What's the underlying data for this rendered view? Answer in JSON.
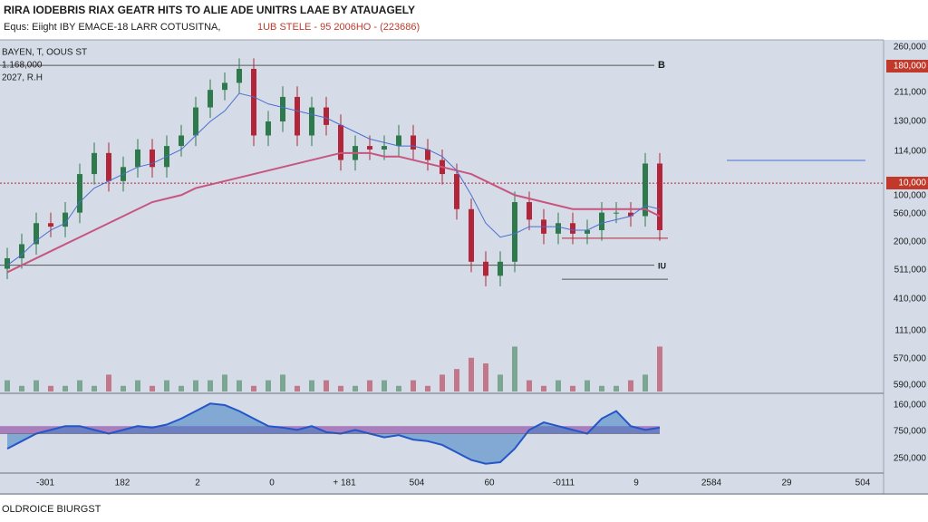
{
  "header": {
    "title": "RIRA IODEBRIS RIAX GEATR HITS TO ALIE ADE UNITRS LAAE BY ATAUAGELY",
    "subtitle": "Equs: Eiight IBY EMACE-18 LARR COTUSITNA,",
    "subtitle_red": "1UB STELE - 95 2006HO - (223686)"
  },
  "chart": {
    "info": [
      "BAYEN, T, OOUS ST",
      "1.168,000",
      "2027, R.H"
    ],
    "ylim": [
      0,
      100
    ],
    "up_color": "#2f7a4c",
    "down_color": "#b3263a",
    "candles": {
      "open": [
        35,
        38,
        42,
        48,
        47,
        51,
        62,
        68,
        60,
        64,
        69,
        64,
        70,
        73,
        81,
        86,
        88,
        92,
        73,
        77,
        84,
        73,
        81,
        76,
        66,
        70,
        69,
        70,
        73,
        69,
        66,
        62,
        52,
        37,
        33,
        37,
        54,
        49,
        45,
        48,
        45,
        46,
        51,
        51,
        50,
        65
      ],
      "high": [
        41,
        45,
        51,
        51,
        54,
        65,
        71,
        71,
        67,
        72,
        72,
        73,
        76,
        84,
        89,
        91,
        95,
        95,
        80,
        87,
        87,
        84,
        84,
        79,
        73,
        73,
        73,
        76,
        76,
        72,
        69,
        65,
        55,
        40,
        40,
        57,
        57,
        52,
        51,
        51,
        49,
        54,
        54,
        54,
        68,
        68
      ],
      "low": [
        32,
        35,
        39,
        44,
        44,
        48,
        59,
        57,
        57,
        61,
        61,
        61,
        67,
        70,
        78,
        83,
        85,
        70,
        70,
        74,
        70,
        70,
        73,
        63,
        63,
        66,
        66,
        67,
        66,
        63,
        59,
        49,
        34,
        30,
        30,
        34,
        46,
        42,
        42,
        42,
        42,
        43,
        48,
        47,
        47,
        43
      ],
      "close": [
        38,
        42,
        48,
        47,
        51,
        62,
        68,
        60,
        64,
        69,
        64,
        70,
        73,
        81,
        86,
        88,
        92,
        73,
        77,
        84,
        73,
        81,
        76,
        66,
        70,
        69,
        70,
        73,
        69,
        66,
        62,
        52,
        37,
        33,
        37,
        54,
        49,
        45,
        48,
        45,
        46,
        51,
        51,
        50,
        65,
        46
      ]
    },
    "ma_slow": {
      "color": "#c8557f",
      "values": [
        34,
        36,
        38,
        40,
        42,
        44,
        46,
        48,
        50,
        52,
        54,
        55,
        56,
        58,
        59,
        60,
        61,
        62,
        63,
        64,
        65,
        66,
        67,
        68,
        68,
        68,
        67,
        67,
        66,
        65,
        64,
        63,
        62,
        60,
        58,
        56,
        55,
        54,
        53,
        52,
        52,
        52,
        52,
        52,
        52,
        50
      ]
    },
    "ma_fast": {
      "color": "#4a6fd0",
      "values": [
        36,
        39,
        43,
        46,
        48,
        54,
        58,
        60,
        62,
        64,
        65,
        67,
        69,
        73,
        77,
        80,
        85,
        84,
        82,
        81,
        80,
        79,
        78,
        76,
        74,
        72,
        71,
        70,
        70,
        69,
        67,
        63,
        56,
        48,
        44,
        45,
        47,
        47,
        47,
        46,
        46,
        48,
        49,
        50,
        53,
        52
      ]
    },
    "levels": [
      {
        "value": 93,
        "color": "#555555",
        "style": "solid"
      },
      {
        "value": 59.4,
        "color": "#b3263a",
        "style": "dotted"
      },
      {
        "value": 36,
        "color": "#555555",
        "style": "solid"
      },
      {
        "value": 32,
        "color": "#555555",
        "style": "solid"
      },
      {
        "value": 43.7,
        "color": "#b3263a",
        "style": "solid"
      },
      {
        "value": 65.9,
        "color": "#4a6fd0",
        "style": "solid"
      }
    ],
    "annotations": [
      "B",
      "IU"
    ],
    "volume": {
      "ylim": [
        0,
        10
      ],
      "values": [
        2,
        1,
        2,
        1,
        1,
        2,
        1,
        3,
        1,
        2,
        1,
        2,
        1,
        2,
        2,
        3,
        2,
        1,
        2,
        3,
        1,
        2,
        2,
        1,
        1,
        2,
        2,
        1,
        2,
        1,
        3,
        4,
        6,
        5,
        3,
        8,
        2,
        1,
        2,
        1,
        2,
        1,
        1,
        2,
        3,
        8
      ]
    },
    "oscillator": {
      "ylim": [
        0,
        100
      ],
      "mid": 50,
      "line_color": "#2456c9",
      "fill_color": "#9a5fae",
      "values": [
        30,
        40,
        50,
        55,
        60,
        60,
        55,
        50,
        55,
        60,
        58,
        62,
        70,
        80,
        90,
        88,
        80,
        70,
        60,
        58,
        55,
        60,
        52,
        50,
        55,
        50,
        45,
        48,
        42,
        40,
        35,
        25,
        15,
        10,
        12,
        30,
        55,
        65,
        60,
        55,
        50,
        70,
        80,
        60,
        55,
        58
      ]
    },
    "price_labels": [
      "260,000",
      "180,000",
      "211,000",
      "130,000",
      "114,000",
      "10,000",
      "100,000",
      "560,000",
      "200,000",
      "511,000",
      "410,000",
      "111,000",
      "570,000",
      "590,000"
    ],
    "osc_labels": [
      "160,000",
      "750,000",
      "250,000"
    ],
    "time_labels": [
      "-301",
      "182",
      "2",
      "0",
      "+ 181",
      "504",
      "60",
      "-0111",
      "9",
      "2584",
      "29",
      "504"
    ]
  },
  "footer": "OLDROICE BIURGST"
}
